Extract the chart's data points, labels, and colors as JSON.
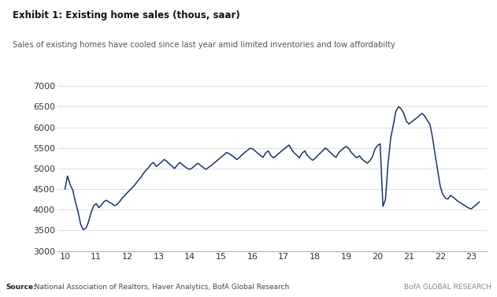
{
  "title": "Exhibit 1: Existing home sales (thous, saar)",
  "subtitle": "Sales of existing homes have cooled since last year amid limited inventories and low affordabilty",
  "source_bold": "Source:",
  "source_rest": "  National Association of Realtors, Haver Analytics, BofA Global Research",
  "watermark": "BofA GLOBAL RESEARCH",
  "line_color": "#1a3564",
  "background_color": "#ffffff",
  "ylim": [
    3000,
    7000
  ],
  "yticks": [
    3000,
    3500,
    4000,
    4500,
    5000,
    5500,
    6000,
    6500,
    7000
  ],
  "xlim": [
    9.75,
    23.5
  ],
  "xticks": [
    10,
    11,
    12,
    13,
    14,
    15,
    16,
    17,
    18,
    19,
    20,
    21,
    22,
    23
  ],
  "accent_bar_color": "#1a5fa8",
  "data": {
    "x": [
      10.0,
      10.08,
      10.17,
      10.25,
      10.33,
      10.42,
      10.5,
      10.58,
      10.67,
      10.75,
      10.83,
      10.92,
      11.0,
      11.08,
      11.17,
      11.25,
      11.33,
      11.42,
      11.5,
      11.58,
      11.67,
      11.75,
      11.83,
      11.92,
      12.0,
      12.08,
      12.17,
      12.25,
      12.33,
      12.42,
      12.5,
      12.58,
      12.67,
      12.75,
      12.83,
      12.92,
      13.0,
      13.08,
      13.17,
      13.25,
      13.33,
      13.42,
      13.5,
      13.58,
      13.67,
      13.75,
      13.83,
      13.92,
      14.0,
      14.08,
      14.17,
      14.25,
      14.33,
      14.42,
      14.5,
      14.58,
      14.67,
      14.75,
      14.83,
      14.92,
      15.0,
      15.08,
      15.17,
      15.25,
      15.33,
      15.42,
      15.5,
      15.58,
      15.67,
      15.75,
      15.83,
      15.92,
      16.0,
      16.08,
      16.17,
      16.25,
      16.33,
      16.42,
      16.5,
      16.58,
      16.67,
      16.75,
      16.83,
      16.92,
      17.0,
      17.08,
      17.17,
      17.25,
      17.33,
      17.42,
      17.5,
      17.58,
      17.67,
      17.75,
      17.83,
      17.92,
      18.0,
      18.08,
      18.17,
      18.25,
      18.33,
      18.42,
      18.5,
      18.58,
      18.67,
      18.75,
      18.83,
      18.92,
      19.0,
      19.08,
      19.17,
      19.25,
      19.33,
      19.42,
      19.5,
      19.58,
      19.67,
      19.75,
      19.83,
      19.92,
      20.0,
      20.08,
      20.17,
      20.25,
      20.33,
      20.42,
      20.5,
      20.58,
      20.67,
      20.75,
      20.83,
      20.92,
      21.0,
      21.08,
      21.17,
      21.25,
      21.33,
      21.42,
      21.5,
      21.58,
      21.67,
      21.75,
      21.83,
      21.92,
      22.0,
      22.08,
      22.17,
      22.25,
      22.33,
      22.42,
      22.5,
      22.58,
      22.67,
      22.75,
      22.83,
      22.92,
      23.0,
      23.08,
      23.17,
      23.25
    ],
    "y": [
      4500,
      4820,
      4600,
      4480,
      4200,
      3950,
      3650,
      3520,
      3550,
      3700,
      3920,
      4100,
      4150,
      4050,
      4120,
      4200,
      4230,
      4180,
      4150,
      4100,
      4130,
      4200,
      4280,
      4350,
      4420,
      4480,
      4550,
      4620,
      4700,
      4780,
      4870,
      4950,
      5020,
      5100,
      5150,
      5050,
      5100,
      5150,
      5220,
      5180,
      5120,
      5060,
      5000,
      5070,
      5150,
      5100,
      5050,
      5000,
      4980,
      5020,
      5080,
      5130,
      5080,
      5030,
      4980,
      5020,
      5070,
      5120,
      5170,
      5230,
      5280,
      5330,
      5390,
      5360,
      5320,
      5270,
      5220,
      5270,
      5340,
      5390,
      5440,
      5490,
      5480,
      5430,
      5370,
      5320,
      5270,
      5380,
      5430,
      5320,
      5260,
      5310,
      5360,
      5420,
      5470,
      5520,
      5570,
      5460,
      5380,
      5320,
      5260,
      5370,
      5430,
      5320,
      5260,
      5200,
      5250,
      5310,
      5380,
      5440,
      5500,
      5440,
      5380,
      5320,
      5270,
      5380,
      5440,
      5500,
      5540,
      5480,
      5380,
      5320,
      5260,
      5310,
      5230,
      5180,
      5130,
      5190,
      5280,
      5480,
      5560,
      5600,
      4080,
      4250,
      5100,
      5750,
      6050,
      6380,
      6500,
      6450,
      6350,
      6150,
      6080,
      6130,
      6180,
      6230,
      6280,
      6340,
      6280,
      6180,
      6080,
      5780,
      5380,
      4950,
      4580,
      4380,
      4280,
      4260,
      4350,
      4300,
      4250,
      4200,
      4160,
      4120,
      4080,
      4040,
      4020,
      4080,
      4130,
      4190
    ]
  }
}
